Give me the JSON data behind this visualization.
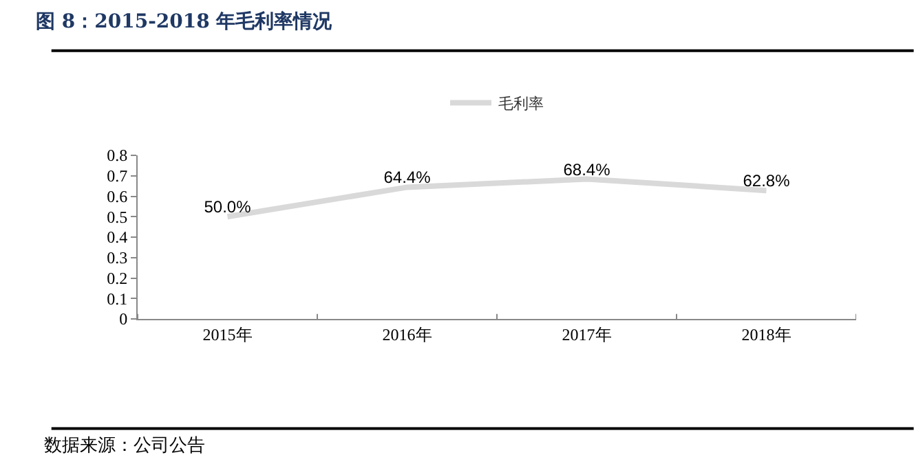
{
  "chart_data": {
    "type": "line",
    "title": "图 8：2015-2018 年毛利率情况",
    "categories": [
      "2015年",
      "2016年",
      "2017年",
      "2018年"
    ],
    "series": [
      {
        "name": "毛利率",
        "color": "#d9d9d9",
        "values": [
          0.5,
          0.644,
          0.684,
          0.628
        ],
        "value_labels": [
          "50.0%",
          "64.4%",
          "68.4%",
          "62.8%"
        ]
      }
    ],
    "ylim": [
      0,
      0.8
    ],
    "yticks": [
      0,
      0.1,
      0.2,
      0.3,
      0.4,
      0.5,
      0.6,
      0.7,
      0.8
    ],
    "legend": "top",
    "marker": "none",
    "line_style": "solid",
    "annotations": [
      "数据来源：公司公告"
    ]
  }
}
